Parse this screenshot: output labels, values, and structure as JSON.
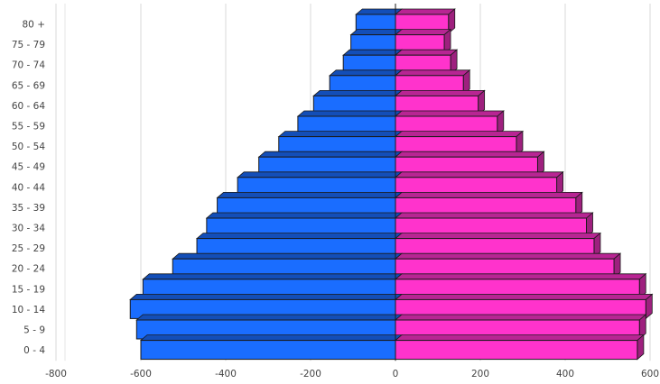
{
  "chart_data": {
    "type": "bar",
    "orientation": "horizontal",
    "style": "3d-population-pyramid",
    "categories": [
      "0 - 4",
      "5 - 9",
      "10 - 14",
      "15 - 19",
      "20 - 24",
      "25 - 29",
      "30 - 34",
      "35 - 39",
      "40 - 44",
      "45 - 49",
      "50 - 54",
      "55 - 59",
      "60 - 64",
      "65 - 69",
      "70 - 74",
      "75 - 79",
      "80 +"
    ],
    "series": [
      {
        "color": "#1a6dff",
        "values": [
          -600,
          -610,
          -625,
          -595,
          -525,
          -468,
          -445,
          -420,
          -372,
          -322,
          -275,
          -230,
          -193,
          -155,
          -123,
          -105,
          -93
        ]
      },
      {
        "color": "#ff33cc",
        "values": [
          570,
          575,
          590,
          575,
          515,
          468,
          450,
          425,
          380,
          335,
          285,
          240,
          195,
          160,
          130,
          115,
          125
        ]
      }
    ],
    "xlim": [
      -800,
      600
    ],
    "xticks": [
      "-800",
      "-600",
      "-400",
      "-200",
      "0",
      "200",
      "400",
      "600"
    ],
    "xtick_values": [
      -800,
      -600,
      -400,
      -200,
      0,
      200,
      400,
      600
    ],
    "title": "",
    "xlabel": "",
    "ylabel": "",
    "grid": "vertical",
    "legend": "none"
  }
}
